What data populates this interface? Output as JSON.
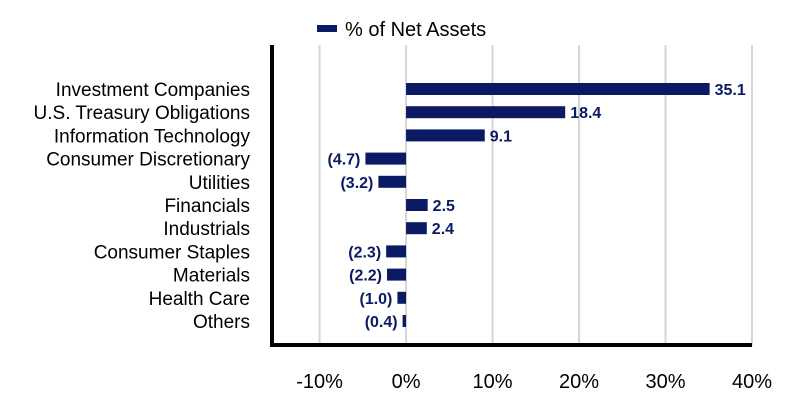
{
  "chart_data": {
    "type": "bar",
    "orientation": "horizontal",
    "categories": [
      "Investment Companies",
      "U.S. Treasury Obligations",
      "Information Technology",
      "Consumer Discretionary",
      "Utilities",
      "Financials",
      "Industrials",
      "Consumer Staples",
      "Materials",
      "Health Care",
      "Others"
    ],
    "series": [
      {
        "name": "% of Net Assets",
        "values": [
          35.1,
          18.4,
          9.1,
          -4.7,
          -3.2,
          2.5,
          2.4,
          -2.3,
          -2.2,
          -1.0,
          -0.4
        ],
        "labels": [
          "35.1",
          "18.4",
          "9.1",
          "(4.7)",
          "(3.2)",
          "2.5",
          "2.4",
          "(2.3)",
          "(2.2)",
          "(1.0)",
          "(0.4)"
        ],
        "color": "#0b1a63"
      }
    ],
    "xlim": [
      -15.5,
      40
    ],
    "xticks": [
      -10,
      0,
      10,
      20,
      30,
      40
    ],
    "xtick_labels": [
      "-10%",
      "0%",
      "10%",
      "20%",
      "30%",
      "40%"
    ],
    "grid": true,
    "legend_position": "top",
    "title": "",
    "xlabel": "",
    "ylabel": ""
  }
}
